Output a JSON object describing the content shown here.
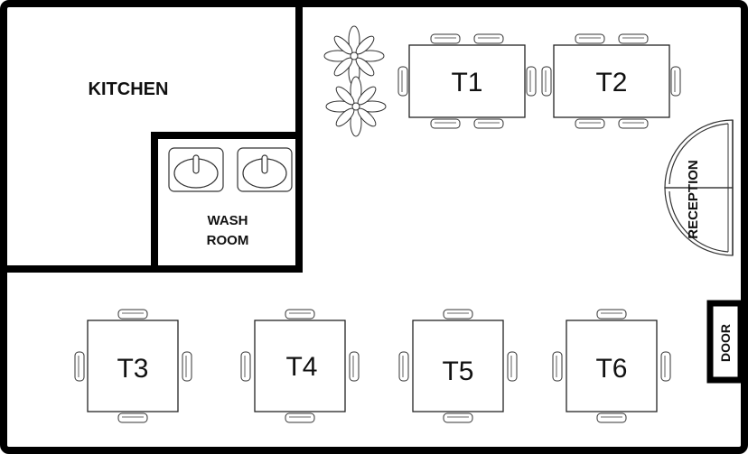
{
  "rooms": {
    "kitchen": "KITCHEN",
    "wash_room_line1": "WASH",
    "wash_room_line2": "ROOM",
    "reception": "RECEPTION",
    "door": "DOOR"
  },
  "tables": {
    "t1": "T1",
    "t2": "T2",
    "t3": "T3",
    "t4": "T4",
    "t5": "T5",
    "t6": "T6"
  },
  "icons": [
    "sink-icon",
    "plant-icon",
    "chair-icon",
    "door-icon"
  ],
  "colors": {
    "wall": "#000000",
    "line": "#222222",
    "background": "#ffffff"
  }
}
